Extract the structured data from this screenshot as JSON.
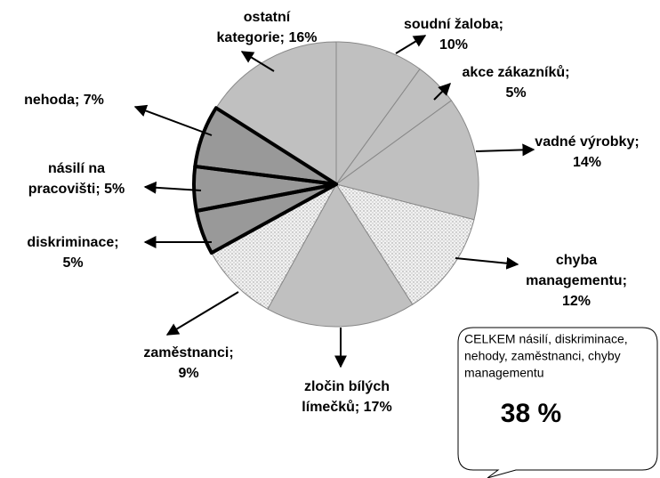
{
  "chart_data": {
    "type": "pie",
    "labels": [
      [
        "soudní žaloba;",
        "10%"
      ],
      [
        "akce zákazníků;",
        "5%"
      ],
      [
        "vadné výrobky;",
        "14%"
      ],
      [
        "chyba",
        "managementu;",
        "12%"
      ],
      [
        "zločin bílých",
        "límečků; 17%"
      ],
      [
        "zaměstnanci;",
        "9%"
      ],
      [
        "diskriminace;",
        "5%"
      ],
      [
        "násilí na",
        "pracovišti; 5%"
      ],
      [
        "nehoda; 7%"
      ],
      [
        "ostatní",
        "kategorie; 16%"
      ]
    ],
    "values": [
      10,
      5,
      14,
      12,
      17,
      9,
      5,
      5,
      7,
      16
    ],
    "colors": [
      "#c0c0c0",
      "#c0c0c0",
      "#c0c0c0",
      "#e6e6e6",
      "#c0c0c0",
      "#e6e6e6",
      "#999999",
      "#999999",
      "#999999",
      "#c0c0c0"
    ],
    "outlined": [
      false,
      false,
      false,
      false,
      false,
      false,
      true,
      true,
      true,
      false
    ],
    "callout": {
      "text_lines": [
        "CELKEM násilí, diskriminace,",
        "nehody, zaměstnanci, chyby",
        "managementu"
      ],
      "total": "38 %"
    }
  }
}
